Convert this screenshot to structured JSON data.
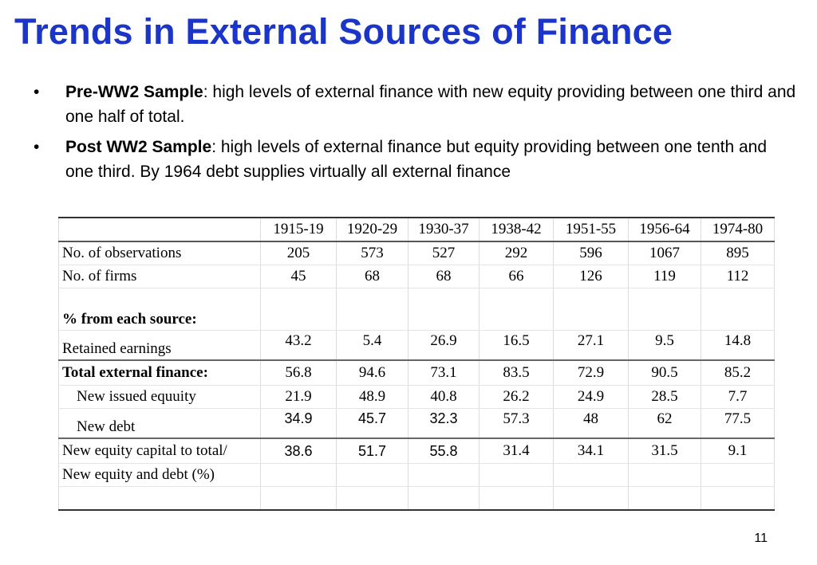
{
  "title": "Trends in External Sources of Finance",
  "bullets": [
    {
      "label": "Pre-WW2 Sample",
      "text": ": high levels of external finance with new equity providing between one third and one half of total."
    },
    {
      "label": "Post WW2 Sample",
      "text": ": high levels of external finance but equity providing between one tenth and one third. By 1964 debt supplies virtually all external finance"
    }
  ],
  "table": {
    "periods": [
      "1915-19",
      "1920-29",
      "1930-37",
      "1938-42",
      "1951-55",
      "1956-64",
      "1974-80"
    ],
    "rows": {
      "observations": {
        "label": "No. of observations",
        "values": [
          "205",
          "573",
          "527",
          "292",
          "596",
          "1067",
          "895"
        ]
      },
      "firms": {
        "label": "No. of firms",
        "values": [
          "45",
          "68",
          "68",
          "66",
          "126",
          "119",
          "112"
        ]
      },
      "section": {
        "label": "% from each source:"
      },
      "retained": {
        "label": "Retained earnings",
        "values": [
          "43.2",
          "5.4",
          "26.9",
          "16.5",
          "27.1",
          "9.5",
          "14.8"
        ]
      },
      "total_external": {
        "label": "Total external finance:",
        "values": [
          "56.8",
          "94.6",
          "73.1",
          "83.5",
          "72.9",
          "90.5",
          "85.2"
        ]
      },
      "new_equity": {
        "label": "New issued equuity",
        "values": [
          "21.9",
          "48.9",
          "40.8",
          "26.2",
          "24.9",
          "28.5",
          "7.7"
        ]
      },
      "new_debt": {
        "label": "New debt",
        "values": [
          "34.9",
          "45.7",
          "32.3",
          "57.3",
          "48",
          "62",
          "77.5"
        ]
      },
      "ratio": {
        "label_line1": "New equity capital to total/",
        "label_line2": "New equity and debt (%)",
        "values": [
          "38.6",
          "51.7",
          "55.8",
          "31.4",
          "34.1",
          "31.5",
          "9.1"
        ]
      }
    }
  },
  "page_number": "11"
}
